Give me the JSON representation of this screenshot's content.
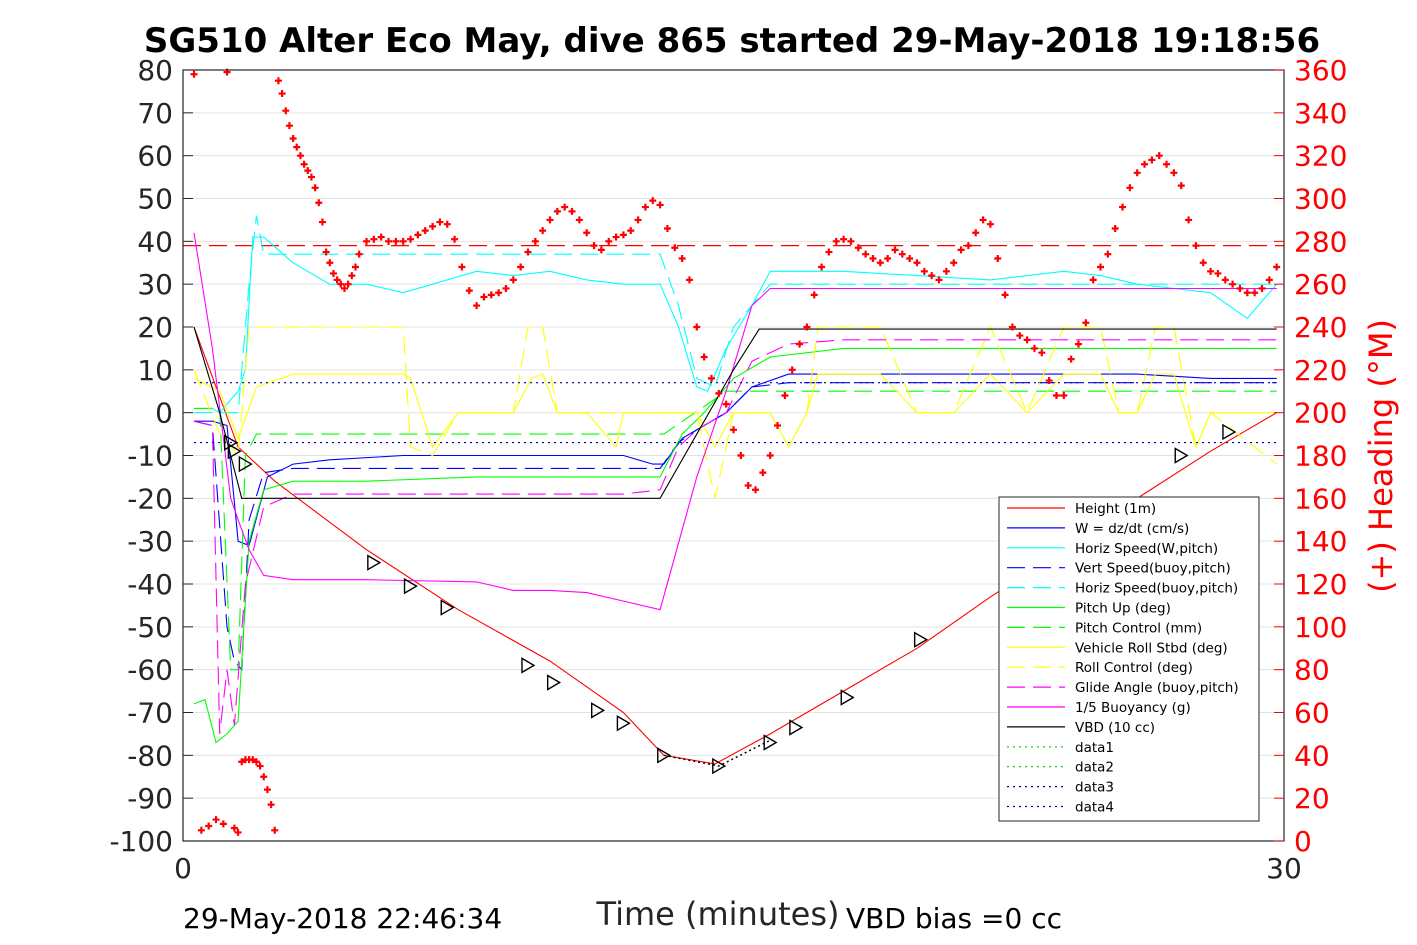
{
  "chart_data": {
    "type": "line",
    "title": "SG510 Alter Eco May, dive 865 started 29-May-2018 19:18:56",
    "xlabel": "Time (minutes)",
    "ylabel_right": "(+) Heading (°M)",
    "footer_left": "29-May-2018 22:46:34",
    "footer_right": "VBD bias =0 cc",
    "xlim": [
      0,
      30
    ],
    "ylim": [
      -100,
      80
    ],
    "ylim_right": [
      0,
      360
    ],
    "x_ticks": [
      "0",
      "30"
    ],
    "y_ticks": [
      "80",
      "70",
      "60",
      "50",
      "40",
      "30",
      "20",
      "10",
      "0",
      "-10",
      "-20",
      "-30",
      "-40",
      "-50",
      "-60",
      "-70",
      "-80",
      "-90",
      "-100"
    ],
    "y_ticks_right": [
      "360",
      "340",
      "320",
      "300",
      "280",
      "260",
      "240",
      "220",
      "200",
      "180",
      "160",
      "140",
      "120",
      "100",
      "80",
      "60",
      "40",
      "20",
      "0"
    ],
    "grid": true,
    "legend_position": "lower-right",
    "colors": {
      "right_axis": "#ff0000",
      "marker": "#ff0000"
    },
    "series": [
      {
        "name": "Height (1m)",
        "color": "#ff0000",
        "style": "solid",
        "x": [
          0.3,
          1.5,
          2.5,
          5,
          7.5,
          10,
          12,
          13.1,
          14.5,
          16,
          18,
          20,
          22,
          24,
          26,
          28,
          29.8
        ],
        "y": [
          20,
          -8,
          -16,
          -32,
          -46,
          -58,
          -70,
          -80,
          -82,
          -75,
          -65,
          -55,
          -43,
          -32,
          -20,
          -9,
          0
        ]
      },
      {
        "name": "W = dz/dt (cm/s)",
        "color": "#0000ff",
        "style": "solid",
        "x": [
          0.3,
          0.8,
          1.2,
          1.5,
          1.8,
          2.3,
          3,
          4,
          6,
          8,
          10,
          12,
          12.8,
          13.1,
          13.6,
          14.2,
          14.8,
          15.5,
          16.5,
          18,
          20,
          22,
          24,
          26,
          28,
          29.8
        ],
        "y": [
          -2,
          -2,
          -3,
          -30,
          -31,
          -15,
          -12,
          -11,
          -10,
          -10,
          -10,
          -10,
          -12,
          -12,
          -6,
          -3,
          0,
          6,
          9,
          9,
          9,
          9,
          9,
          9,
          8,
          8
        ]
      },
      {
        "name": "Horiz Speed(W,pitch)",
        "color": "#00ffff",
        "style": "solid",
        "x": [
          0.3,
          0.8,
          1,
          1.2,
          1.5,
          1.7,
          1.9,
          2.2,
          2.6,
          3,
          4,
          5,
          6,
          8,
          9,
          10,
          11,
          12,
          13,
          13.5,
          14,
          14.3,
          14.8,
          15.5,
          16,
          18,
          20,
          22,
          24,
          25,
          26,
          28,
          29,
          29.8
        ],
        "y": [
          1,
          1,
          0,
          2,
          5,
          10,
          41,
          41,
          38,
          35,
          30,
          30,
          28,
          33,
          32,
          33,
          31,
          30,
          30,
          20,
          6,
          5,
          15,
          25,
          33,
          33,
          32,
          31,
          33,
          32,
          30,
          28,
          22,
          30
        ]
      },
      {
        "name": "Vert Speed(buoy,pitch)",
        "color": "#0000ff",
        "style": "dashed",
        "x": [
          0.3,
          0.8,
          1.2,
          1.4,
          1.6,
          1.8,
          2.2,
          3,
          5,
          8,
          10,
          12,
          13,
          13.5,
          14,
          14.8,
          15.5,
          16.5,
          18,
          20,
          22,
          24,
          26,
          28,
          29.8
        ],
        "y": [
          -2,
          -3,
          -50,
          -58,
          -60,
          -25,
          -14,
          -13,
          -13,
          -13,
          -13,
          -13,
          -13,
          -7,
          -4,
          0,
          6,
          7,
          7,
          7,
          7,
          7,
          7,
          7,
          7
        ]
      },
      {
        "name": "Horiz Speed(buoy,pitch)",
        "color": "#00ffff",
        "style": "dashed",
        "x": [
          0.3,
          0.8,
          1.2,
          1.5,
          1.8,
          2,
          2.2,
          3,
          5,
          8,
          10,
          12,
          13,
          13.5,
          14,
          14.5,
          15,
          16,
          18,
          20,
          22,
          24,
          26,
          28,
          29.8
        ],
        "y": [
          0,
          0,
          0,
          0,
          30,
          46,
          37,
          37,
          37,
          37,
          37,
          37,
          37,
          25,
          8,
          6,
          20,
          30,
          30,
          30,
          30,
          30,
          30,
          30,
          30
        ]
      },
      {
        "name": "Pitch Up (deg)",
        "color": "#00ff00",
        "style": "solid",
        "x": [
          0.3,
          0.6,
          0.9,
          1.2,
          1.5,
          1.8,
          2.2,
          3,
          5,
          8,
          10,
          12,
          13,
          13.6,
          14.2,
          15,
          16,
          18,
          20,
          22,
          24,
          26,
          28,
          29.8
        ],
        "y": [
          -68,
          -67,
          -77,
          -75,
          -72,
          -30,
          -18,
          -16,
          -16,
          -15,
          -15,
          -15,
          -15,
          -5,
          0,
          8,
          13,
          15,
          15,
          15,
          15,
          15,
          15,
          15
        ]
      },
      {
        "name": "Pitch Control (mm)",
        "color": "#00ff00",
        "style": "dashed",
        "x": [
          0.3,
          1,
          1.3,
          1.5,
          1.7,
          2,
          13,
          13.1,
          14.8,
          14.9,
          29.8
        ],
        "y": [
          1,
          1,
          -60,
          -60,
          -10,
          -5,
          -5,
          -5,
          5,
          5,
          5
        ]
      },
      {
        "name": "Vehicle Roll Stbd (deg)",
        "color": "#ffff00",
        "style": "solid",
        "x": [
          0.3,
          1,
          1.5,
          2,
          3,
          5,
          6,
          6.2,
          6.8,
          7.5,
          9,
          9.5,
          9.8,
          10.2,
          11,
          11.8,
          12,
          12.8,
          13,
          14,
          14.5,
          15,
          16,
          16.5,
          17,
          17.3,
          18,
          19,
          20,
          20.3,
          21,
          22,
          23,
          24,
          25,
          25.5,
          26,
          26.5,
          27,
          27.6,
          28,
          29.8
        ],
        "y": [
          8,
          5,
          -6,
          6,
          9,
          9,
          9,
          8,
          -8,
          0,
          0,
          8,
          9,
          0,
          0,
          -8,
          0,
          0,
          0,
          0,
          -8,
          0,
          0,
          -8,
          0,
          9,
          9,
          9,
          0,
          0,
          0,
          9,
          0,
          9,
          9,
          0,
          0,
          9,
          9,
          -8,
          0,
          0
        ]
      },
      {
        "name": "Roll Control (deg)",
        "color": "#ffff00",
        "style": "dashed",
        "x": [
          0.3,
          1,
          1.5,
          1.8,
          2,
          3,
          5,
          6,
          6.2,
          6.8,
          7.5,
          9,
          9.4,
          9.8,
          10.2,
          11,
          12,
          13,
          14,
          14.5,
          15,
          16,
          16.5,
          17,
          17.3,
          18,
          19,
          20,
          20.3,
          21,
          22,
          23,
          24,
          25,
          25.5,
          26,
          26.5,
          27,
          27.6,
          28,
          29.5,
          29.8
        ],
        "y": [
          10,
          -5,
          -10,
          20,
          20,
          20,
          20,
          20,
          -8,
          -10,
          0,
          0,
          20,
          20,
          0,
          0,
          0,
          0,
          0,
          -20,
          0,
          0,
          -8,
          0,
          20,
          20,
          20,
          0,
          0,
          0,
          20,
          0,
          20,
          20,
          0,
          0,
          20,
          20,
          -8,
          0,
          -10,
          -12
        ]
      },
      {
        "name": "Glide Angle (buoy,pitch)",
        "color": "#ff00ff",
        "style": "dashed",
        "x": [
          0.3,
          0.8,
          1,
          1.2,
          1.4,
          1.7,
          2.2,
          3,
          5,
          8,
          10,
          12,
          13,
          13.5,
          14,
          14.8,
          15.5,
          16.5,
          18,
          20,
          22,
          24,
          26,
          28,
          29.8
        ],
        "y": [
          -2,
          -3,
          -75,
          -60,
          -73,
          -40,
          -22,
          -19,
          -19,
          -19,
          -19,
          -19,
          -18,
          -8,
          -4,
          0,
          12,
          16,
          17,
          17,
          17,
          17,
          17,
          17,
          17
        ]
      },
      {
        "name": "1/5 Buoyancy (g)",
        "color": "#ff00ff",
        "style": "solid",
        "x": [
          0.3,
          0.8,
          1.3,
          1.5,
          1.8,
          2.2,
          3,
          5,
          8,
          9,
          10,
          11,
          12,
          12.5,
          13,
          14,
          14.8,
          15.5,
          16,
          18,
          20,
          22,
          24,
          26,
          28,
          29.8
        ],
        "y": [
          42,
          15,
          -20,
          -25,
          -32,
          -38,
          -39,
          -39,
          -39.5,
          -41.5,
          -41.5,
          -42,
          -44,
          -45,
          -46,
          -15,
          5,
          25,
          29,
          29,
          29,
          29,
          29,
          29,
          29,
          29
        ]
      },
      {
        "name": "VBD (10 cc)",
        "color": "#000000",
        "style": "solid",
        "x": [
          0.3,
          1,
          1.6,
          1.8,
          13,
          15,
          15.7,
          29.8
        ],
        "y": [
          20,
          0,
          -20,
          -20,
          -20,
          10,
          19.5,
          19.5
        ]
      },
      {
        "name": "data1",
        "color": "#00cc00",
        "style": "dotted",
        "x": [
          0.3,
          29.8
        ],
        "y": [
          -100,
          -100
        ]
      },
      {
        "name": "data2",
        "color": "#00cc00",
        "style": "dotted",
        "x": [
          0.3,
          29.8
        ],
        "y": [
          -100,
          -100
        ]
      },
      {
        "name": "data3",
        "color": "#0000aa",
        "style": "dotted",
        "x": [
          0.3,
          29.8
        ],
        "y": [
          7,
          7
        ]
      },
      {
        "name": "data4",
        "color": "#0000aa",
        "style": "dotted",
        "x": [
          0.3,
          29.8
        ],
        "y": [
          -7,
          -7
        ]
      }
    ],
    "dive_surface_path": {
      "color": "#000000",
      "style": "dotted",
      "x": [
        13.1,
        14.6,
        16
      ],
      "y": [
        -80,
        -82.5,
        -76.5
      ]
    },
    "reference_lines": [
      {
        "axis": "right",
        "value": 278,
        "color": "#ff0000",
        "style": "dashed"
      }
    ],
    "markers": {
      "symbol": "triangle",
      "color": "#000000",
      "x": [
        1.3,
        1.4,
        1.7,
        5.2,
        6.2,
        7.2,
        9.4,
        10.1,
        11.3,
        12,
        13.1,
        14.6,
        16,
        16.7,
        18.1,
        20.1,
        27.2,
        28.5
      ],
      "y": [
        -7,
        -9,
        -12,
        -35,
        -40.5,
        -45.5,
        -59,
        -63,
        -69.5,
        -72.5,
        -80,
        -82.5,
        -77,
        -73.5,
        -66.5,
        -53,
        -10,
        -4.5
      ]
    },
    "heading": {
      "axis": "right",
      "symbol": "plus",
      "x": [
        0.3,
        0.5,
        0.7,
        0.9,
        1.1,
        1.2,
        1.4,
        1.5,
        1.6,
        1.7,
        1.8,
        1.9,
        2.0,
        2.1,
        2.2,
        2.3,
        2.4,
        2.5,
        2.6,
        2.7,
        2.8,
        2.9,
        3.0,
        3.1,
        3.2,
        3.3,
        3.4,
        3.5,
        3.6,
        3.7,
        3.8,
        3.9,
        4.0,
        4.1,
        4.2,
        4.3,
        4.4,
        4.5,
        4.6,
        4.7,
        4.8,
        5.0,
        5.2,
        5.4,
        5.6,
        5.8,
        6.0,
        6.2,
        6.4,
        6.6,
        6.8,
        7.0,
        7.2,
        7.4,
        7.6,
        7.8,
        8.0,
        8.2,
        8.4,
        8.6,
        8.8,
        9.0,
        9.2,
        9.4,
        9.6,
        9.8,
        10.0,
        10.2,
        10.4,
        10.6,
        10.8,
        11.0,
        11.2,
        11.4,
        11.6,
        11.8,
        12.0,
        12.2,
        12.4,
        12.6,
        12.8,
        13.0,
        13.2,
        13.4,
        13.6,
        13.8,
        14.0,
        14.2,
        14.4,
        14.6,
        14.8,
        15.0,
        15.2,
        15.4,
        15.6,
        15.8,
        16.0,
        16.2,
        16.4,
        16.6,
        16.8,
        17.0,
        17.2,
        17.4,
        17.6,
        17.8,
        18.0,
        18.2,
        18.4,
        18.6,
        18.8,
        19.0,
        19.2,
        19.4,
        19.6,
        19.8,
        20.0,
        20.2,
        20.4,
        20.6,
        20.8,
        21.0,
        21.2,
        21.4,
        21.6,
        21.8,
        22.0,
        22.2,
        22.4,
        22.6,
        22.8,
        23.0,
        23.2,
        23.4,
        23.6,
        23.8,
        24.0,
        24.2,
        24.4,
        24.6,
        24.8,
        25.0,
        25.2,
        25.4,
        25.6,
        25.8,
        26.0,
        26.2,
        26.4,
        26.6,
        26.8,
        27.0,
        27.2,
        27.4,
        27.6,
        27.8,
        28.0,
        28.2,
        28.4,
        28.6,
        28.8,
        29.0,
        29.2,
        29.4,
        29.6,
        29.8
      ],
      "y": [
        358,
        5,
        7,
        10,
        8,
        359,
        6,
        4,
        37,
        38,
        38,
        38,
        37,
        35,
        30,
        24,
        17,
        5,
        355,
        349,
        341,
        334,
        328,
        324,
        320,
        316,
        313,
        310,
        305,
        298,
        289,
        275,
        270,
        265,
        262,
        260,
        258,
        260,
        264,
        268,
        274,
        280,
        281,
        282,
        280,
        280,
        280,
        281,
        283,
        285,
        287,
        289,
        288,
        281,
        268,
        257,
        250,
        254,
        255,
        256,
        258,
        262,
        268,
        275,
        280,
        285,
        290,
        294,
        296,
        294,
        290,
        284,
        278,
        276,
        280,
        282,
        283,
        285,
        290,
        296,
        299,
        297,
        286,
        277,
        272,
        262,
        240,
        226,
        216,
        209,
        204,
        192,
        180,
        166,
        164,
        172,
        180,
        194,
        208,
        220,
        232,
        240,
        255,
        268,
        275,
        280,
        281,
        280,
        277,
        274,
        272,
        270,
        272,
        276,
        274,
        272,
        270,
        266,
        264,
        262,
        266,
        270,
        276,
        278,
        284,
        290,
        288,
        272,
        255,
        240,
        236,
        234,
        230,
        228,
        215,
        208,
        208,
        225,
        232,
        242,
        262,
        268,
        274,
        286,
        296,
        305,
        312,
        316,
        318,
        320,
        316,
        312,
        306,
        290,
        278,
        270,
        266,
        265,
        262,
        260,
        258,
        256,
        256,
        258,
        262,
        268
      ]
    }
  }
}
